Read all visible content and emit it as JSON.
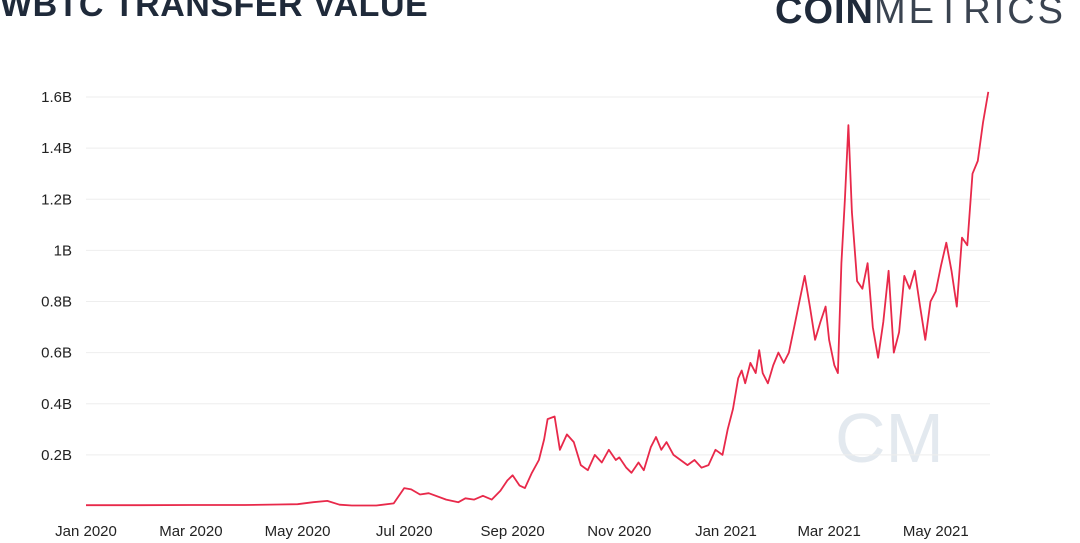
{
  "header": {
    "title": "WBTC TRANSFER VALUE",
    "brand_bold": "COIN",
    "brand_light": "METRICS",
    "watermark": "CM"
  },
  "colors": {
    "line": "#e8294a",
    "grid": "#eeeeee",
    "text": "#1f2a3a"
  },
  "chart_data": {
    "type": "line",
    "title": "WBTC TRANSFER VALUE",
    "xlabel": "",
    "ylabel": "",
    "x_range": [
      "2020-01-01",
      "2021-06-01"
    ],
    "ylim": [
      0,
      1.6
    ],
    "y_unit": "B",
    "y_ticks": [
      {
        "value": 0.2,
        "label": "0.2B"
      },
      {
        "value": 0.4,
        "label": "0.4B"
      },
      {
        "value": 0.6,
        "label": "0.6B"
      },
      {
        "value": 0.8,
        "label": "0.8B"
      },
      {
        "value": 1.0,
        "label": "1B"
      },
      {
        "value": 1.2,
        "label": "1.2B"
      },
      {
        "value": 1.4,
        "label": "1.4B"
      },
      {
        "value": 1.6,
        "label": "1.6B"
      }
    ],
    "x_ticks": [
      {
        "date": "2020-01-01",
        "label": "Jan 2020"
      },
      {
        "date": "2020-03-01",
        "label": "Mar 2020"
      },
      {
        "date": "2020-05-01",
        "label": "May 2020"
      },
      {
        "date": "2020-07-01",
        "label": "Jul 2020"
      },
      {
        "date": "2020-09-01",
        "label": "Sep 2020"
      },
      {
        "date": "2020-11-01",
        "label": "Nov 2020"
      },
      {
        "date": "2021-01-01",
        "label": "Jan 2021"
      },
      {
        "date": "2021-03-01",
        "label": "Mar 2021"
      },
      {
        "date": "2021-05-01",
        "label": "May 2021"
      }
    ],
    "grid": true,
    "legend": "none",
    "series": [
      {
        "points": [
          [
            "2020-01-01",
            0.003
          ],
          [
            "2020-02-01",
            0.003
          ],
          [
            "2020-03-01",
            0.004
          ],
          [
            "2020-04-01",
            0.004
          ],
          [
            "2020-04-20",
            0.006
          ],
          [
            "2020-05-01",
            0.007
          ],
          [
            "2020-05-10",
            0.015
          ],
          [
            "2020-05-18",
            0.02
          ],
          [
            "2020-05-25",
            0.005
          ],
          [
            "2020-06-01",
            0.002
          ],
          [
            "2020-06-15",
            0.002
          ],
          [
            "2020-06-25",
            0.01
          ],
          [
            "2020-07-01",
            0.07
          ],
          [
            "2020-07-05",
            0.065
          ],
          [
            "2020-07-10",
            0.045
          ],
          [
            "2020-07-15",
            0.05
          ],
          [
            "2020-07-25",
            0.025
          ],
          [
            "2020-08-01",
            0.015
          ],
          [
            "2020-08-05",
            0.03
          ],
          [
            "2020-08-10",
            0.025
          ],
          [
            "2020-08-15",
            0.04
          ],
          [
            "2020-08-20",
            0.025
          ],
          [
            "2020-08-25",
            0.06
          ],
          [
            "2020-08-29",
            0.1
          ],
          [
            "2020-09-01",
            0.12
          ],
          [
            "2020-09-05",
            0.08
          ],
          [
            "2020-09-08",
            0.07
          ],
          [
            "2020-09-12",
            0.13
          ],
          [
            "2020-09-16",
            0.18
          ],
          [
            "2020-09-19",
            0.26
          ],
          [
            "2020-09-21",
            0.34
          ],
          [
            "2020-09-25",
            0.35
          ],
          [
            "2020-09-28",
            0.22
          ],
          [
            "2020-10-02",
            0.28
          ],
          [
            "2020-10-06",
            0.25
          ],
          [
            "2020-10-10",
            0.16
          ],
          [
            "2020-10-14",
            0.14
          ],
          [
            "2020-10-18",
            0.2
          ],
          [
            "2020-10-22",
            0.17
          ],
          [
            "2020-10-26",
            0.22
          ],
          [
            "2020-10-30",
            0.18
          ],
          [
            "2020-11-01",
            0.19
          ],
          [
            "2020-11-05",
            0.15
          ],
          [
            "2020-11-08",
            0.13
          ],
          [
            "2020-11-12",
            0.17
          ],
          [
            "2020-11-15",
            0.14
          ],
          [
            "2020-11-19",
            0.23
          ],
          [
            "2020-11-22",
            0.27
          ],
          [
            "2020-11-25",
            0.22
          ],
          [
            "2020-11-28",
            0.25
          ],
          [
            "2020-12-02",
            0.2
          ],
          [
            "2020-12-06",
            0.18
          ],
          [
            "2020-12-10",
            0.16
          ],
          [
            "2020-12-14",
            0.18
          ],
          [
            "2020-12-18",
            0.15
          ],
          [
            "2020-12-22",
            0.16
          ],
          [
            "2020-12-26",
            0.22
          ],
          [
            "2020-12-30",
            0.2
          ],
          [
            "2021-01-02",
            0.3
          ],
          [
            "2021-01-05",
            0.38
          ],
          [
            "2021-01-08",
            0.5
          ],
          [
            "2021-01-10",
            0.53
          ],
          [
            "2021-01-12",
            0.48
          ],
          [
            "2021-01-15",
            0.56
          ],
          [
            "2021-01-18",
            0.52
          ],
          [
            "2021-01-20",
            0.61
          ],
          [
            "2021-01-22",
            0.52
          ],
          [
            "2021-01-25",
            0.48
          ],
          [
            "2021-01-28",
            0.55
          ],
          [
            "2021-01-31",
            0.6
          ],
          [
            "2021-02-03",
            0.56
          ],
          [
            "2021-02-06",
            0.6
          ],
          [
            "2021-02-09",
            0.7
          ],
          [
            "2021-02-12",
            0.8
          ],
          [
            "2021-02-15",
            0.9
          ],
          [
            "2021-02-18",
            0.78
          ],
          [
            "2021-02-21",
            0.65
          ],
          [
            "2021-02-24",
            0.72
          ],
          [
            "2021-02-27",
            0.78
          ],
          [
            "2021-03-01",
            0.65
          ],
          [
            "2021-03-04",
            0.55
          ],
          [
            "2021-03-06",
            0.52
          ],
          [
            "2021-03-08",
            0.95
          ],
          [
            "2021-03-10",
            1.2
          ],
          [
            "2021-03-12",
            1.49
          ],
          [
            "2021-03-14",
            1.15
          ],
          [
            "2021-03-17",
            0.88
          ],
          [
            "2021-03-20",
            0.85
          ],
          [
            "2021-03-23",
            0.95
          ],
          [
            "2021-03-26",
            0.7
          ],
          [
            "2021-03-29",
            0.58
          ],
          [
            "2021-04-01",
            0.72
          ],
          [
            "2021-04-04",
            0.92
          ],
          [
            "2021-04-07",
            0.6
          ],
          [
            "2021-04-10",
            0.68
          ],
          [
            "2021-04-13",
            0.9
          ],
          [
            "2021-04-16",
            0.85
          ],
          [
            "2021-04-19",
            0.92
          ],
          [
            "2021-04-22",
            0.78
          ],
          [
            "2021-04-25",
            0.65
          ],
          [
            "2021-04-28",
            0.8
          ],
          [
            "2021-05-01",
            0.84
          ],
          [
            "2021-05-04",
            0.94
          ],
          [
            "2021-05-07",
            1.03
          ],
          [
            "2021-05-10",
            0.92
          ],
          [
            "2021-05-13",
            0.78
          ],
          [
            "2021-05-16",
            1.05
          ],
          [
            "2021-05-19",
            1.02
          ],
          [
            "2021-05-22",
            1.3
          ],
          [
            "2021-05-25",
            1.35
          ],
          [
            "2021-05-28",
            1.5
          ],
          [
            "2021-05-31",
            1.62
          ]
        ]
      }
    ]
  }
}
